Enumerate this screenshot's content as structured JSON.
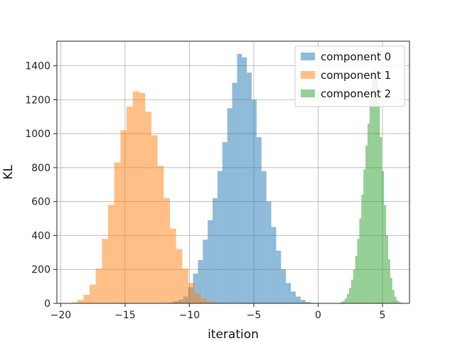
{
  "chart_data": {
    "type": "bar",
    "xlabel": "iteration",
    "ylabel": "KL",
    "xlim": [
      -20.3,
      7.1
    ],
    "ylim": [
      0,
      1545
    ],
    "xticks": [
      -20,
      -15,
      -10,
      -5,
      0,
      5
    ],
    "xtick_labels": [
      "−20",
      "−15",
      "−10",
      "−5",
      "0",
      "5"
    ],
    "yticks": [
      0,
      200,
      400,
      600,
      800,
      1000,
      1200,
      1400
    ],
    "ytick_labels": [
      "0",
      "200",
      "400",
      "600",
      "800",
      "1000",
      "1200",
      "1400"
    ],
    "grid": true,
    "legend_position": "top-right",
    "series": [
      {
        "name": "component 0",
        "color": "#1f77b4",
        "bin_start": -12.0,
        "bin_width": 0.38,
        "counts": [
          2,
          5,
          12,
          22,
          40,
          95,
          175,
          255,
          375,
          490,
          620,
          780,
          950,
          1150,
          1300,
          1470,
          1450,
          1360,
          1200,
          980,
          780,
          600,
          450,
          310,
          200,
          120,
          70,
          40,
          20,
          8,
          3
        ]
      },
      {
        "name": "component 1",
        "color": "#ff7f0e",
        "bin_start": -19.2,
        "bin_width": 0.48,
        "counts": [
          5,
          20,
          50,
          110,
          205,
          380,
          580,
          830,
          1020,
          1160,
          1250,
          1240,
          1130,
          990,
          810,
          620,
          440,
          320,
          205,
          120,
          60,
          30,
          12,
          5
        ]
      },
      {
        "name": "component 2",
        "color": "#2ca02c",
        "bin_start": 1.6,
        "bin_width": 0.16,
        "counts": [
          3,
          8,
          15,
          30,
          55,
          90,
          140,
          200,
          280,
          380,
          500,
          640,
          790,
          930,
          1060,
          1200,
          1310,
          1380,
          1330,
          1180,
          980,
          780,
          580,
          400,
          260,
          150,
          80,
          40,
          18,
          8,
          3
        ]
      }
    ]
  }
}
